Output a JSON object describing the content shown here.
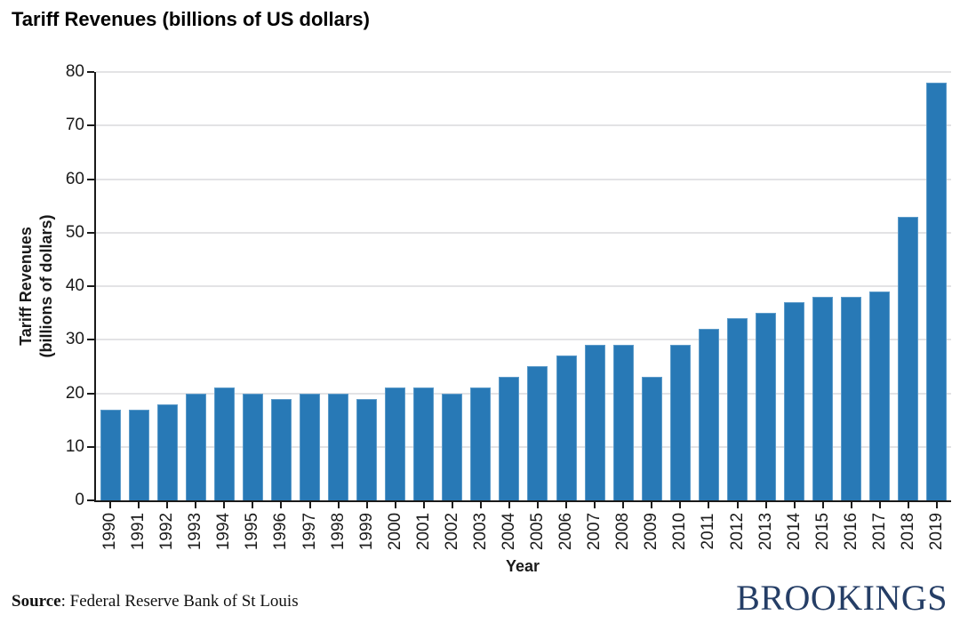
{
  "title": "Tariff Revenues (billions of US dollars)",
  "chart_data": {
    "type": "bar",
    "title": "Tariff Revenues (billions of US dollars)",
    "xlabel": "Year",
    "ylabel": "Tariff Revenues (billions of dollars)",
    "categories": [
      "1990",
      "1991",
      "1992",
      "1993",
      "1994",
      "1995",
      "1996",
      "1997",
      "1998",
      "1999",
      "2000",
      "2001",
      "2002",
      "2003",
      "2004",
      "2005",
      "2006",
      "2007",
      "2008",
      "2009",
      "2010",
      "2011",
      "2012",
      "2013",
      "2014",
      "2015",
      "2016",
      "2017",
      "2018",
      "2019"
    ],
    "values": [
      17,
      17,
      18,
      20,
      21,
      20,
      19,
      20,
      20,
      19,
      21,
      21,
      20,
      21,
      23,
      25,
      27,
      29,
      29,
      23,
      29,
      32,
      34,
      35,
      37,
      38,
      38,
      39,
      53,
      78
    ],
    "ylim": [
      0,
      80
    ],
    "ytick_step": 10,
    "grid": "horizontal",
    "legend": "none",
    "bar_color": "#2879b6",
    "bar_edge_color": "#5d9bc9",
    "gridline_color": "#e3e3e5"
  },
  "axes": {
    "ylabel_lines": [
      "Tariff Revenues",
      "(billions of dollars)"
    ],
    "xlabel": "Year"
  },
  "footer": {
    "source_label": "Source",
    "source_rest": ": Federal Reserve Bank of St Louis",
    "logo_text": "BROOKINGS",
    "logo_color": "#253e66"
  }
}
